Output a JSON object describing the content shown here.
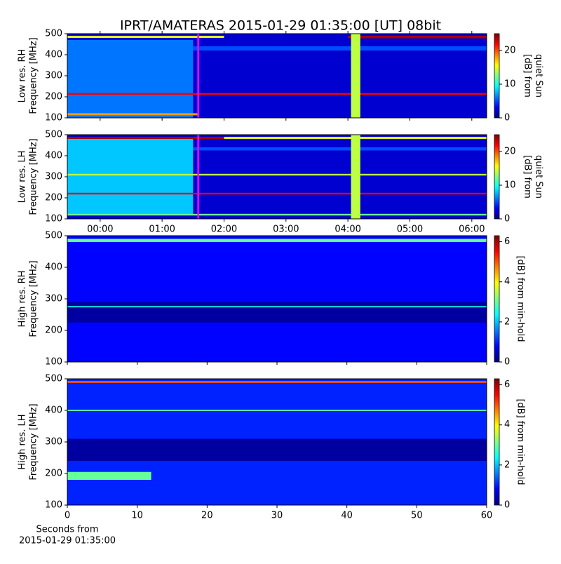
{
  "title": "IPRT/AMATERAS 2015-01-29 01:35:00 [UT]   08bit",
  "chart_data": [
    {
      "type": "heatmap",
      "ylabel": [
        "Low res. RH",
        "Frequency [MHz]"
      ],
      "xlim": [
        -0.53,
        6.24
      ],
      "xticks": [
        0,
        1,
        2,
        3,
        4,
        5,
        6
      ],
      "ylim": [
        100,
        500
      ],
      "yticks": [
        100,
        200,
        300,
        400,
        500
      ],
      "clim": [
        0,
        25
      ],
      "cticks": [
        0,
        10,
        20
      ],
      "clabel": [
        "[dB] from",
        "quiet Sun"
      ],
      "marker_x": 1.583,
      "marker_color": "#ff00ff",
      "regions": [
        {
          "x": [
            -0.53,
            6.24
          ],
          "y": [
            100,
            500
          ],
          "db": 2
        },
        {
          "x": [
            -0.53,
            1.5
          ],
          "y": [
            100,
            470
          ],
          "db": 6
        },
        {
          "x": [
            1.5,
            6.24
          ],
          "y": [
            420,
            440
          ],
          "db": 5
        },
        {
          "x": [
            -0.53,
            6.24
          ],
          "y": [
            210,
            218
          ],
          "db": 22
        },
        {
          "x": [
            -0.53,
            2.0
          ],
          "y": [
            480,
            490
          ],
          "db": 15
        },
        {
          "x": [
            4.0,
            6.24
          ],
          "y": [
            478,
            490
          ],
          "db": 24
        },
        {
          "x": [
            -0.53,
            1.6
          ],
          "y": [
            112,
            122
          ],
          "db": 18
        },
        {
          "x": [
            4.05,
            4.2
          ],
          "y": [
            100,
            500
          ],
          "db": 14
        }
      ]
    },
    {
      "type": "heatmap",
      "ylabel": [
        "Low res. LH",
        "Frequency [MHz]"
      ],
      "xlim": [
        -0.53,
        6.24
      ],
      "xticks": [
        {
          "value": 0,
          "label": "00:00"
        },
        {
          "value": 1,
          "label": "01:00"
        },
        {
          "value": 2,
          "label": "02:00"
        },
        {
          "value": 3,
          "label": "03:00"
        },
        {
          "value": 4,
          "label": "04:00"
        },
        {
          "value": 5,
          "label": "05:00"
        },
        {
          "value": 6,
          "label": "06:00"
        }
      ],
      "ylim": [
        100,
        500
      ],
      "yticks": [
        100,
        200,
        300,
        400,
        500
      ],
      "clim": [
        0,
        25
      ],
      "cticks": [
        0,
        10,
        20
      ],
      "clabel": [
        "[dB] from",
        "quiet Sun"
      ],
      "marker_x": 1.583,
      "marker_color": "#ff00ff",
      "regions": [
        {
          "x": [
            -0.53,
            6.24
          ],
          "y": [
            100,
            500
          ],
          "db": 2
        },
        {
          "x": [
            -0.53,
            1.5
          ],
          "y": [
            120,
            480
          ],
          "db": 8
        },
        {
          "x": [
            1.5,
            6.24
          ],
          "y": [
            425,
            440
          ],
          "db": 5
        },
        {
          "x": [
            -0.53,
            6.24
          ],
          "y": [
            216,
            224
          ],
          "db": 22
        },
        {
          "x": [
            -0.53,
            6.24
          ],
          "y": [
            306,
            314
          ],
          "db": 14
        },
        {
          "x": [
            -0.53,
            2.0
          ],
          "y": [
            480,
            490
          ],
          "db": 24
        },
        {
          "x": [
            2.0,
            6.24
          ],
          "y": [
            480,
            490
          ],
          "db": 15
        },
        {
          "x": [
            -0.53,
            6.24
          ],
          "y": [
            116,
            124
          ],
          "db": 12
        },
        {
          "x": [
            4.05,
            4.2
          ],
          "y": [
            100,
            500
          ],
          "db": 14
        }
      ]
    },
    {
      "type": "heatmap",
      "ylabel": [
        "High res. RH",
        "Frequency [MHz]"
      ],
      "xlim": [
        0,
        60
      ],
      "xticks": [
        0,
        10,
        20,
        30,
        40,
        50,
        60
      ],
      "ylim": [
        100,
        500
      ],
      "yticks": [
        100,
        200,
        300,
        400,
        500
      ],
      "clim": [
        0,
        6.3
      ],
      "cticks": [
        0,
        2,
        4,
        6
      ],
      "clabel": [
        "[dB] from min-hold"
      ],
      "regions": [
        {
          "x": [
            0,
            60
          ],
          "y": [
            100,
            500
          ],
          "db": 0.8
        },
        {
          "x": [
            0,
            60
          ],
          "y": [
            225,
            290
          ],
          "db": 0.2
        },
        {
          "x": [
            0,
            60
          ],
          "y": [
            273,
            277
          ],
          "db": 2.5
        },
        {
          "x": [
            0,
            60
          ],
          "y": [
            480,
            490
          ],
          "db": 3
        }
      ]
    },
    {
      "type": "heatmap",
      "ylabel": [
        "High res. LH",
        "Frequency [MHz]"
      ],
      "xlim": [
        0,
        60
      ],
      "xticks": [
        0,
        10,
        20,
        30,
        40,
        50,
        60
      ],
      "xlabel": [
        "Seconds from",
        "2015-01-29 01:35:00"
      ],
      "ylim": [
        100,
        500
      ],
      "yticks": [
        100,
        200,
        300,
        400,
        500
      ],
      "clim": [
        0,
        6.3
      ],
      "cticks": [
        0,
        2,
        4,
        6
      ],
      "clabel": [
        "[dB] from min-hold"
      ],
      "regions": [
        {
          "x": [
            0,
            60
          ],
          "y": [
            100,
            500
          ],
          "db": 1
        },
        {
          "x": [
            0,
            60
          ],
          "y": [
            240,
            310
          ],
          "db": 0.2
        },
        {
          "x": [
            0,
            60
          ],
          "y": [
            398,
            402
          ],
          "db": 3
        },
        {
          "x": [
            0,
            60
          ],
          "y": [
            487,
            493
          ],
          "db": 5
        },
        {
          "x": [
            0,
            12
          ],
          "y": [
            180,
            205
          ],
          "db": 3
        }
      ]
    }
  ]
}
